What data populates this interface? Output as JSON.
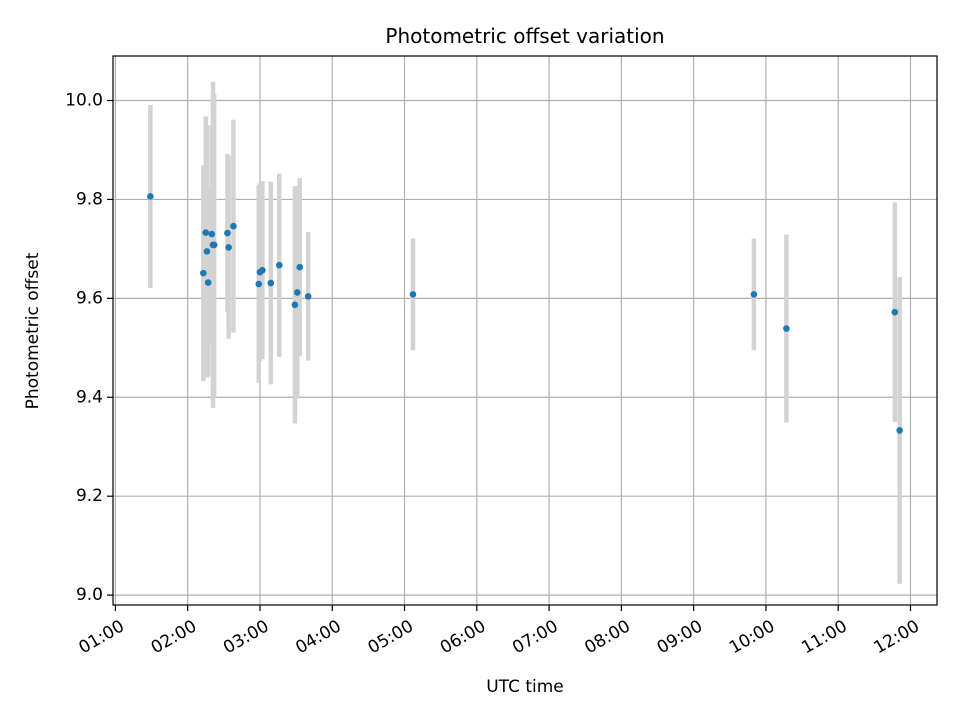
{
  "chart_data": {
    "type": "scatter",
    "title": "Photometric offset variation",
    "xlabel": "UTC time",
    "ylabel": "Photometric offset",
    "x_unit": "UTC time (HH:MM)",
    "xlim": [
      "00:58",
      "12:22"
    ],
    "ylim": [
      8.98,
      10.09
    ],
    "grid": true,
    "x_ticks": [
      "01:00",
      "02:00",
      "03:00",
      "04:00",
      "05:00",
      "06:00",
      "07:00",
      "08:00",
      "09:00",
      "10:00",
      "11:00",
      "12:00"
    ],
    "y_ticks": [
      9.0,
      9.2,
      9.4,
      9.6,
      9.8,
      10.0
    ],
    "y_tick_labels": [
      "9.0",
      "9.2",
      "9.4",
      "9.6",
      "9.8",
      "10.0"
    ],
    "colors": {
      "points": "#1f77b4",
      "error_bars": "#d3d3d3",
      "grid": "#b0b0b0",
      "axes": "#000000"
    },
    "series": [
      {
        "points": [
          {
            "x": "01:29",
            "y": 9.806,
            "err": 0.185
          },
          {
            "x": "02:13",
            "y": 9.651,
            "err": 0.218
          },
          {
            "x": "02:15",
            "y": 9.733,
            "err": 0.235
          },
          {
            "x": "02:16",
            "y": 9.695,
            "err": 0.255
          },
          {
            "x": "02:17",
            "y": 9.632,
            "err": 0.19
          },
          {
            "x": "02:20",
            "y": 9.73,
            "err": 0.22
          },
          {
            "x": "02:21",
            "y": 9.708,
            "err": 0.33
          },
          {
            "x": "02:22",
            "y": 9.708,
            "err": 0.305
          },
          {
            "x": "02:33",
            "y": 9.732,
            "err": 0.16
          },
          {
            "x": "02:34",
            "y": 9.703,
            "err": 0.185
          },
          {
            "x": "02:38",
            "y": 9.746,
            "err": 0.215
          },
          {
            "x": "02:59",
            "y": 9.629,
            "err": 0.2
          },
          {
            "x": "03:00",
            "y": 9.653,
            "err": 0.18
          },
          {
            "x": "03:02",
            "y": 9.657,
            "err": 0.18
          },
          {
            "x": "03:09",
            "y": 9.631,
            "err": 0.205
          },
          {
            "x": "03:16",
            "y": 9.667,
            "err": 0.185
          },
          {
            "x": "03:29",
            "y": 9.587,
            "err": 0.24
          },
          {
            "x": "03:31",
            "y": 9.612,
            "err": 0.215
          },
          {
            "x": "03:33",
            "y": 9.663,
            "err": 0.18
          },
          {
            "x": "03:40",
            "y": 9.604,
            "err": 0.13
          },
          {
            "x": "05:07",
            "y": 9.608,
            "err": 0.113
          },
          {
            "x": "09:50",
            "y": 9.608,
            "err": 0.113
          },
          {
            "x": "10:17",
            "y": 9.539,
            "err": 0.19
          },
          {
            "x": "11:47",
            "y": 9.572,
            "err": 0.222
          },
          {
            "x": "11:51",
            "y": 9.333,
            "err": 0.31
          }
        ]
      }
    ]
  }
}
